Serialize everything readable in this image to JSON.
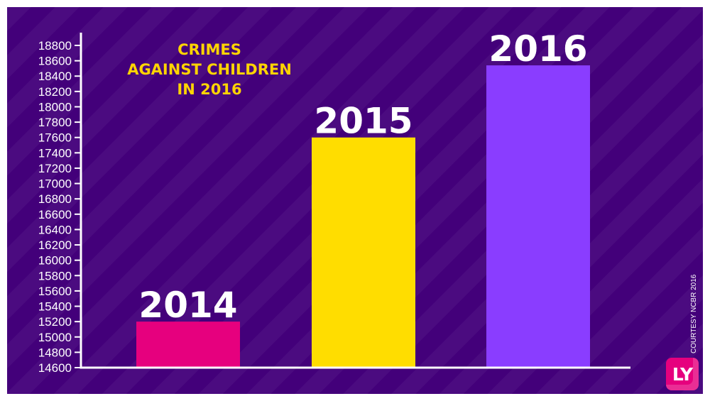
{
  "chart_data": {
    "type": "bar",
    "title_lines": [
      "CRIMES",
      "AGAINST CHILDREN",
      "IN 2016"
    ],
    "categories": [
      "2014",
      "2015",
      "2016"
    ],
    "values": [
      15200,
      17600,
      18540
    ],
    "ylim": [
      14600,
      19000
    ],
    "yticks": [
      14600,
      14800,
      15000,
      15200,
      15400,
      15600,
      15800,
      16000,
      16200,
      16400,
      16600,
      16800,
      17000,
      17200,
      17400,
      17600,
      17800,
      18000,
      18200,
      18400,
      18600,
      18800
    ],
    "bar_colors": [
      "#e6007e",
      "#ffdd00",
      "#8a3dff"
    ],
    "background": "#43007a",
    "title_color": "#ffd400",
    "grid": false,
    "legend": "none"
  },
  "footer": {
    "source": "COURTESY NCBR 2016",
    "logo_text": "LY"
  }
}
